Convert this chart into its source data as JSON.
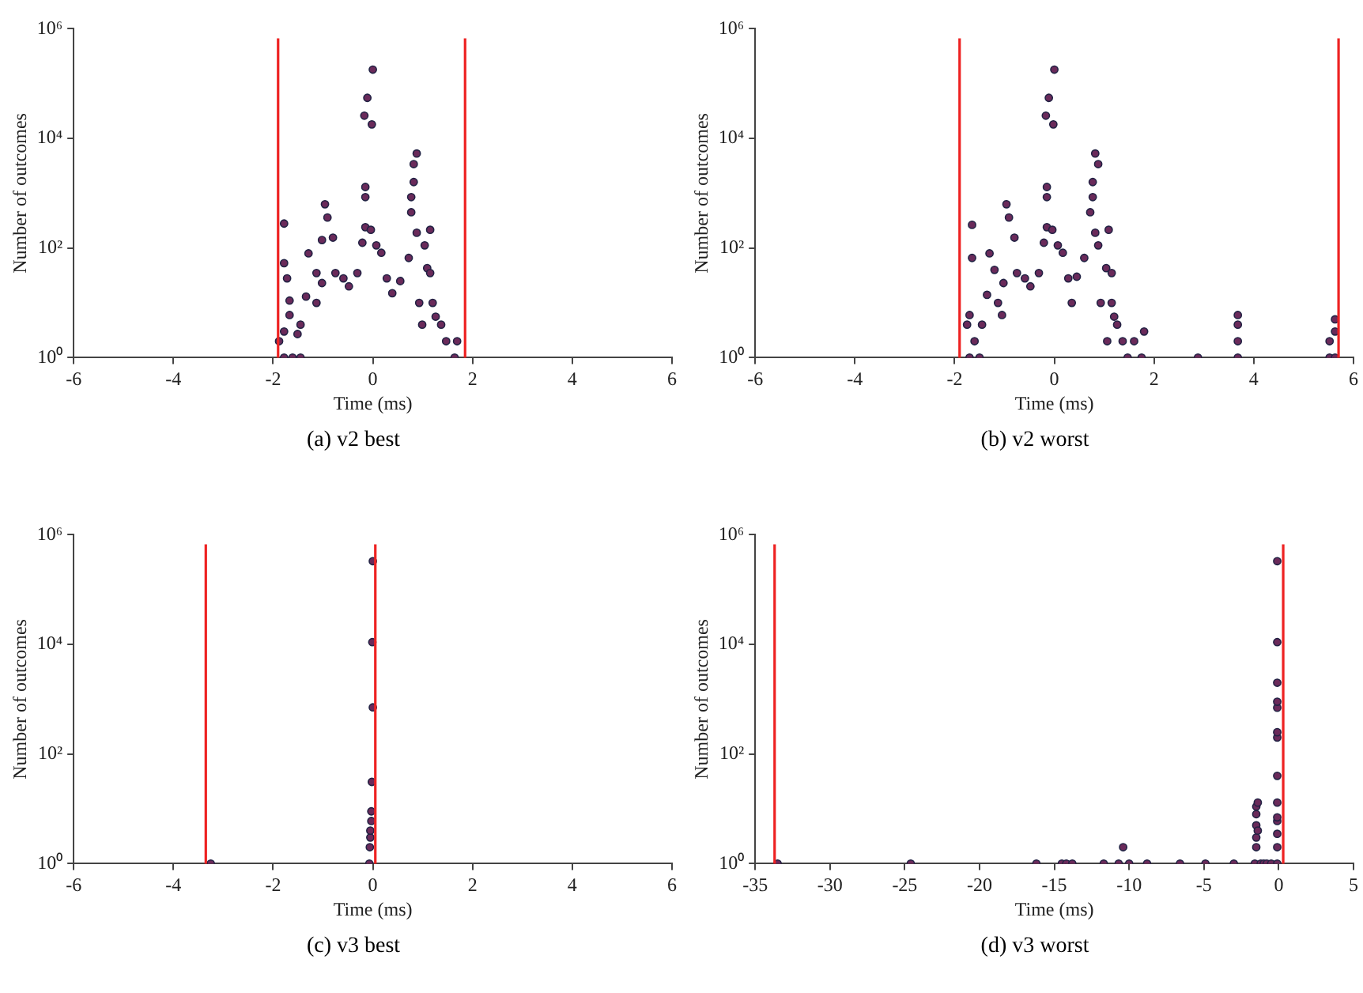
{
  "chart_data": [
    {
      "type": "scatter",
      "xlabel": "Time (ms)",
      "ylabel": "Number of outcomes",
      "annotations": [
        "(a) v2 best"
      ],
      "log": "y",
      "marker": "circle",
      "color": "#6a2a5a",
      "xlim": [
        -6,
        6
      ],
      "xticks": [
        -6,
        -4,
        -2,
        0,
        2,
        4,
        6
      ],
      "ylim": [
        1,
        1000000
      ],
      "yticks": [
        {
          "value": 1,
          "label": "10⁰"
        },
        {
          "value": 100,
          "label": "10²"
        },
        {
          "value": 10000,
          "label": "10⁴"
        },
        {
          "value": 1000000,
          "label": "10⁶"
        }
      ],
      "ref_lines": [
        {
          "axis": "x",
          "value": -1.9,
          "color": "#ee2222"
        },
        {
          "axis": "x",
          "value": 1.85,
          "color": "#ee2222"
        }
      ],
      "x": [
        -1.78,
        -1.78,
        -1.72,
        -1.67,
        -1.67,
        -1.78,
        -1.88,
        -1.78,
        -1.45,
        -1.45,
        -1.34,
        -1.29,
        -1.13,
        -1.13,
        -1.02,
        -0.96,
        -0.91,
        -0.8,
        -0.75,
        -0.59,
        -0.48,
        -0.31,
        -0.21,
        -0.15,
        -0.15,
        -0.15,
        -0.17,
        -0.11,
        -0.02,
        0,
        -0.04,
        0.07,
        0.17,
        0.28,
        0.39,
        0.55,
        0.72,
        0.77,
        0.77,
        0.82,
        0.88,
        0.82,
        0.88,
        1.04,
        1.09,
        1.15,
        1.15,
        1.2,
        1.26,
        1.37,
        1.47,
        1.64,
        0.99,
        0.93,
        -1.02,
        -1.51,
        -1.61,
        1.69
      ],
      "values": [
        280,
        53,
        28,
        11,
        6,
        3,
        2,
        1,
        1,
        4,
        13,
        80,
        35,
        10,
        140,
        630,
        360,
        155,
        35,
        28,
        20,
        35,
        125,
        240,
        1300,
        850,
        26000,
        55000,
        18000,
        180000,
        215,
        112,
        82,
        28,
        15,
        25,
        66,
        450,
        850,
        1600,
        5300,
        3400,
        190,
        112,
        43,
        215,
        35,
        10,
        5.6,
        4,
        2,
        1,
        4,
        10,
        23,
        2.7,
        1,
        2
      ]
    },
    {
      "type": "scatter",
      "xlabel": "Time (ms)",
      "ylabel": "Number of outcomes",
      "annotations": [
        "(b) v2 worst"
      ],
      "log": "y",
      "marker": "circle",
      "color": "#6a2a5a",
      "xlim": [
        -6,
        6
      ],
      "xticks": [
        -6,
        -4,
        -2,
        0,
        2,
        4,
        6
      ],
      "ylim": [
        1,
        1000000
      ],
      "yticks": [
        {
          "value": 1,
          "label": "10⁰"
        },
        {
          "value": 100,
          "label": "10²"
        },
        {
          "value": 10000,
          "label": "10⁴"
        },
        {
          "value": 1000000,
          "label": "10⁶"
        }
      ],
      "ref_lines": [
        {
          "axis": "x",
          "value": -1.9,
          "color": "#ee2222"
        },
        {
          "axis": "x",
          "value": 5.7,
          "color": "#ee2222"
        }
      ],
      "x": [
        -1.65,
        -1.65,
        -1.7,
        -1.75,
        -1.7,
        -1.6,
        -1.5,
        -1.45,
        -1.35,
        -1.3,
        -1.2,
        -1.13,
        -1.05,
        -0.96,
        -0.91,
        -0.8,
        -0.75,
        -0.59,
        -0.48,
        -0.31,
        -0.21,
        -0.15,
        -0.15,
        -0.15,
        -0.17,
        -0.11,
        -0.02,
        0,
        -0.04,
        0.07,
        0.17,
        0.28,
        0.35,
        0.45,
        0.6,
        0.72,
        0.77,
        0.77,
        0.82,
        0.88,
        0.82,
        0.88,
        1.04,
        1.09,
        1.15,
        1.15,
        1.2,
        1.26,
        1.37,
        1.47,
        1.6,
        1.75,
        1.8,
        1.06,
        0.93,
        -1.02,
        2.88,
        3.68,
        3.68,
        3.68,
        3.68,
        5.52,
        5.52,
        5.63,
        5.63,
        5.63
      ],
      "values": [
        265,
        66,
        6,
        4,
        1,
        2,
        1,
        4,
        14,
        80,
        40,
        10,
        6,
        630,
        360,
        155,
        35,
        28,
        20,
        35,
        125,
        240,
        1300,
        850,
        26000,
        55000,
        18000,
        180000,
        215,
        112,
        82,
        28,
        10,
        30,
        66,
        450,
        850,
        1600,
        5300,
        3400,
        190,
        112,
        43,
        215,
        35,
        10,
        5.6,
        4,
        2,
        1,
        2,
        1,
        3,
        2,
        10,
        23,
        1,
        6,
        4,
        2,
        1,
        2,
        1,
        5,
        3,
        1
      ]
    },
    {
      "type": "scatter",
      "xlabel": "Time (ms)",
      "ylabel": "Number of outcomes",
      "annotations": [
        "(c) v3 best"
      ],
      "log": "y",
      "marker": "circle",
      "color": "#6a2a5a",
      "xlim": [
        -6,
        6
      ],
      "xticks": [
        -6,
        -4,
        -2,
        0,
        2,
        4,
        6
      ],
      "ylim": [
        1,
        1000000
      ],
      "yticks": [
        {
          "value": 1,
          "label": "10⁰"
        },
        {
          "value": 100,
          "label": "10²"
        },
        {
          "value": 10000,
          "label": "10⁴"
        },
        {
          "value": 1000000,
          "label": "10⁶"
        }
      ],
      "ref_lines": [
        {
          "axis": "x",
          "value": -3.35,
          "color": "#ee2222"
        },
        {
          "axis": "x",
          "value": 0.05,
          "color": "#ee2222"
        }
      ],
      "x": [
        -3.25,
        -0.07,
        -0.06,
        -0.05,
        -0.05,
        -0.03,
        -0.03,
        -0.02,
        0,
        -0.01,
        0
      ],
      "values": [
        1,
        1,
        2,
        3,
        4,
        6,
        9,
        31,
        710,
        11000,
        330000
      ]
    },
    {
      "type": "scatter",
      "xlabel": "Time (ms)",
      "ylabel": "Number of outcomes",
      "annotations": [
        "(d) v3 worst"
      ],
      "log": "y",
      "marker": "circle",
      "color": "#6a2a5a",
      "xlim": [
        -35,
        5
      ],
      "xticks": [
        -35,
        -30,
        -25,
        -20,
        -15,
        -10,
        -5,
        0,
        5
      ],
      "ylim": [
        1,
        1000000
      ],
      "yticks": [
        {
          "value": 1,
          "label": "10⁰"
        },
        {
          "value": 100,
          "label": "10²"
        },
        {
          "value": 10000,
          "label": "10⁴"
        },
        {
          "value": 1000000,
          "label": "10⁶"
        }
      ],
      "ref_lines": [
        {
          "axis": "x",
          "value": -33.7,
          "color": "#ee2222"
        },
        {
          "axis": "x",
          "value": 0.3,
          "color": "#ee2222"
        }
      ],
      "x": [
        -33.5,
        -24.6,
        -16.2,
        -14.5,
        -14.2,
        -13.8,
        -11.7,
        -10.7,
        -10,
        -8.8,
        -6.6,
        -4.9,
        -3,
        -10.4,
        -1.6,
        -1.5,
        -1.5,
        -1.5,
        -1.5,
        -1.5,
        -1.4,
        -1.4,
        -1.2,
        -1,
        -0.8,
        -0.5,
        -0.1,
        -0.1,
        -0.1,
        -0.1,
        -0.1,
        -0.1,
        -0.1,
        -0.1,
        -0.1,
        -0.1,
        -0.1,
        -0.1,
        -0.1,
        -0.1
      ],
      "values": [
        1,
        1,
        1,
        1,
        1,
        1,
        1,
        1,
        1,
        1,
        1,
        1,
        1,
        2,
        1,
        2,
        3,
        5,
        8,
        11,
        13,
        4,
        1,
        1,
        1,
        1,
        1,
        2,
        3.5,
        6,
        7,
        13,
        40,
        200,
        250,
        700,
        900,
        2000,
        11000,
        330000
      ]
    }
  ]
}
